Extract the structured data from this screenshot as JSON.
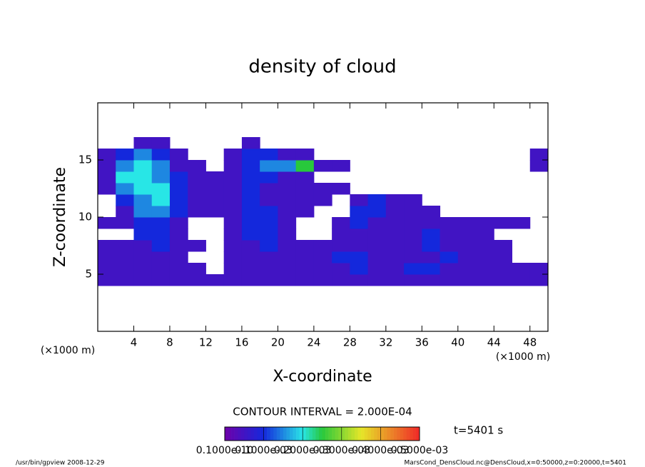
{
  "chart_data": {
    "type": "heatmap",
    "title": "density of cloud",
    "x_label": "X-coordinate",
    "y_label": "Z-coordinate",
    "x_unit": "(×1000 m)",
    "y_unit": "(×1000 m)",
    "contour_note": "CONTOUR INTERVAL = 2.000E-04",
    "time_note": "t=5401 s",
    "footer_left": "/usr/bin/gpview   2008-12-29",
    "footer_right": "MarsCond_DensCloud.nc@DensCloud,x=0:50000,z=0:20000,t=5401",
    "xlim": [
      0,
      50
    ],
    "xticks": [
      4,
      8,
      12,
      16,
      20,
      24,
      28,
      32,
      36,
      40,
      44,
      48
    ],
    "ylim": [
      0,
      20
    ],
    "yticks": [
      5,
      10,
      15
    ],
    "x": [
      1,
      3,
      5,
      7,
      9,
      11,
      13,
      15,
      17,
      19,
      21,
      23,
      25,
      27,
      29,
      31,
      33,
      35,
      37,
      39,
      41,
      43,
      45,
      47,
      49
    ],
    "y": [
      0.5,
      1.5,
      2.5,
      3.5,
      4.5,
      5.5,
      6.5,
      7.5,
      8.5,
      9.5,
      10.5,
      11.5,
      12.5,
      13.5,
      14.5,
      15.5,
      16.5,
      17.5,
      18.5,
      19.5
    ],
    "values": [
      [
        0,
        0,
        0,
        0,
        0,
        0,
        0,
        0,
        0,
        0,
        0,
        0,
        0,
        0,
        0,
        0,
        0,
        0,
        0,
        0,
        0,
        0,
        0,
        0,
        0
      ],
      [
        0,
        0,
        0,
        0,
        0,
        0,
        0,
        0,
        0,
        0,
        0,
        0,
        0,
        0,
        0,
        0,
        0,
        0,
        0,
        0,
        0,
        0,
        0,
        0,
        0
      ],
      [
        0,
        0,
        0,
        0,
        0,
        0,
        0,
        0,
        0,
        0,
        0,
        0,
        0,
        0,
        0,
        0,
        0,
        0,
        0,
        0,
        0,
        0,
        0,
        0,
        0
      ],
      [
        0,
        0,
        0,
        0,
        0,
        0,
        0,
        0,
        0,
        0,
        0,
        0,
        0,
        0,
        0,
        0,
        0,
        0,
        0,
        0,
        0,
        0,
        0,
        0,
        0
      ],
      [
        5e-05,
        5e-05,
        5e-05,
        5e-05,
        5e-05,
        5e-05,
        5e-05,
        5e-05,
        5e-05,
        5e-05,
        5e-05,
        5e-05,
        5e-05,
        5e-05,
        5e-05,
        5e-05,
        5e-05,
        5e-05,
        5e-05,
        5e-05,
        5e-05,
        5e-05,
        5e-05,
        5e-05,
        5e-05
      ],
      [
        5e-05,
        5e-05,
        5e-05,
        5e-05,
        5e-05,
        5e-05,
        0,
        5e-05,
        5e-05,
        5e-05,
        5e-05,
        5e-05,
        5e-05,
        5e-05,
        0.0001,
        5e-05,
        5e-05,
        0.0001,
        0.0001,
        5e-05,
        5e-05,
        5e-05,
        5e-05,
        5e-05,
        5e-05
      ],
      [
        5e-05,
        5e-05,
        5e-05,
        5e-05,
        5e-05,
        0,
        0,
        5e-05,
        5e-05,
        5e-05,
        5e-05,
        5e-05,
        5e-05,
        0.0001,
        0.0001,
        5e-05,
        5e-05,
        5e-05,
        5e-05,
        0.0001,
        5e-05,
        5e-05,
        5e-05,
        0,
        0
      ],
      [
        5e-05,
        5e-05,
        5e-05,
        0.0001,
        5e-05,
        5e-05,
        0,
        5e-05,
        5e-05,
        0.0001,
        5e-05,
        5e-05,
        5e-05,
        5e-05,
        5e-05,
        5e-05,
        5e-05,
        5e-05,
        0.0001,
        5e-05,
        5e-05,
        5e-05,
        5e-05,
        0,
        0
      ],
      [
        0,
        0,
        0.0001,
        0.0001,
        5e-05,
        0,
        0,
        5e-05,
        0.0001,
        0.0001,
        5e-05,
        0,
        0,
        5e-05,
        5e-05,
        5e-05,
        5e-05,
        5e-05,
        0.0001,
        5e-05,
        5e-05,
        5e-05,
        0,
        0,
        0
      ],
      [
        5e-05,
        5e-05,
        0.0001,
        0.0001,
        5e-05,
        0,
        0,
        5e-05,
        0.0001,
        0.0001,
        5e-05,
        0,
        0,
        5e-05,
        0.0001,
        5e-05,
        5e-05,
        5e-05,
        5e-05,
        5e-05,
        5e-05,
        5e-05,
        5e-05,
        5e-05,
        0
      ],
      [
        0,
        5e-05,
        0.00015,
        0.00015,
        0.0001,
        5e-05,
        5e-05,
        5e-05,
        0.0001,
        0.0001,
        5e-05,
        5e-05,
        0,
        0,
        0.0001,
        0.0001,
        5e-05,
        5e-05,
        5e-05,
        0,
        0,
        0,
        0,
        0,
        0
      ],
      [
        0,
        0.0001,
        0.00015,
        0.0002,
        0.0001,
        5e-05,
        5e-05,
        5e-05,
        0.0001,
        5e-05,
        5e-05,
        5e-05,
        5e-05,
        0,
        5e-05,
        0.0001,
        5e-05,
        5e-05,
        0,
        0,
        0,
        0,
        0,
        0,
        0
      ],
      [
        5e-05,
        0.00015,
        0.0002,
        0.0002,
        0.0001,
        5e-05,
        5e-05,
        5e-05,
        0.0001,
        5e-05,
        5e-05,
        5e-05,
        5e-05,
        5e-05,
        0,
        0,
        0,
        0,
        0,
        0,
        0,
        0,
        0,
        0,
        0
      ],
      [
        5e-05,
        0.0002,
        0.0002,
        0.00015,
        0.0001,
        5e-05,
        5e-05,
        5e-05,
        0.0001,
        0.0001,
        5e-05,
        5e-05,
        0,
        0,
        0,
        0,
        0,
        0,
        0,
        0,
        0,
        0,
        0,
        0,
        0
      ],
      [
        5e-05,
        0.00015,
        0.0002,
        0.00015,
        5e-05,
        5e-05,
        0,
        5e-05,
        0.0001,
        0.00015,
        0.00015,
        0.00025,
        5e-05,
        5e-05,
        0,
        0,
        0,
        0,
        0,
        0,
        0,
        0,
        0,
        0,
        5e-05
      ],
      [
        5e-05,
        0.0001,
        0.00015,
        0.0001,
        5e-05,
        0,
        0,
        5e-05,
        0.0001,
        0.0001,
        5e-05,
        5e-05,
        0,
        0,
        0,
        0,
        0,
        0,
        0,
        0,
        0,
        0,
        0,
        0,
        5e-05
      ],
      [
        0,
        0,
        5e-05,
        5e-05,
        0,
        0,
        0,
        0,
        5e-05,
        0,
        0,
        0,
        0,
        0,
        0,
        0,
        0,
        0,
        0,
        0,
        0,
        0,
        0,
        0,
        0
      ],
      [
        0,
        0,
        0,
        0,
        0,
        0,
        0,
        0,
        0,
        0,
        0,
        0,
        0,
        0,
        0,
        0,
        0,
        0,
        0,
        0,
        0,
        0,
        0,
        0,
        0
      ],
      [
        0,
        0,
        0,
        0,
        0,
        0,
        0,
        0,
        0,
        0,
        0,
        0,
        0,
        0,
        0,
        0,
        0,
        0,
        0,
        0,
        0,
        0,
        0,
        0,
        0
      ],
      [
        0,
        0,
        0,
        0,
        0,
        0,
        0,
        0,
        0,
        0,
        0,
        0,
        0,
        0,
        0,
        0,
        0,
        0,
        0,
        0,
        0,
        0,
        0,
        0,
        0
      ]
    ],
    "colorbar": {
      "lim": [
        1e-11,
        0.0005
      ],
      "ticks": [
        {
          "value": 1e-11,
          "label": "0.1000e-10"
        },
        {
          "value": 0.0001,
          "label": "0.1000e-03"
        },
        {
          "value": 0.0002,
          "label": "0.2000e-03"
        },
        {
          "value": 0.0003,
          "label": "0.3000e-03"
        },
        {
          "value": 0.0004,
          "label": "0.4000e-03"
        },
        {
          "value": 0.0005,
          "label": "0.5000e-03"
        }
      ]
    }
  }
}
